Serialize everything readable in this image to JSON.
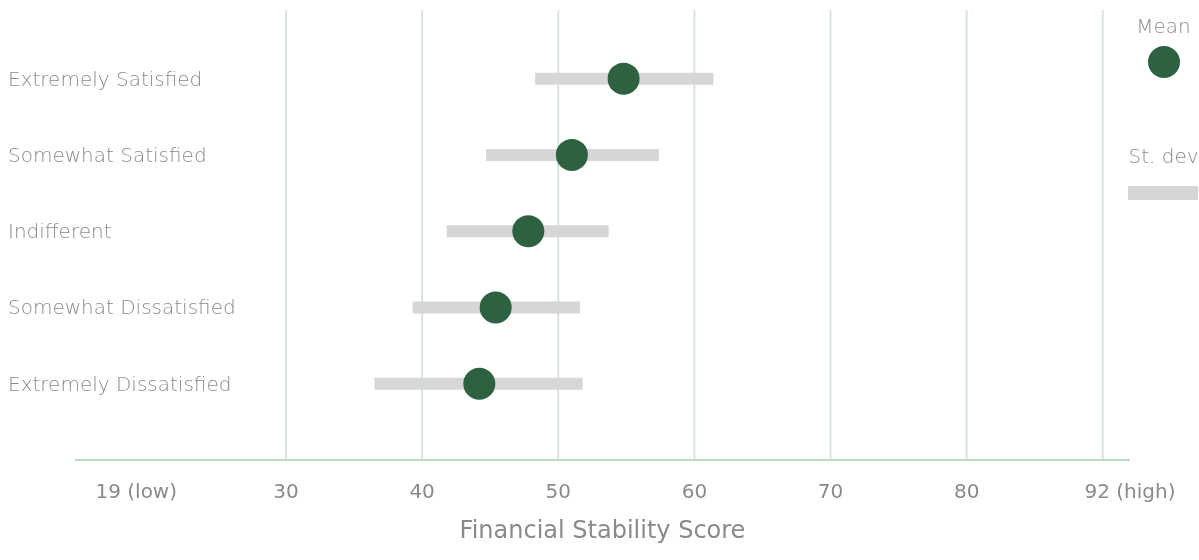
{
  "chart_data": {
    "type": "scatter",
    "orientation": "horizontal",
    "xlabel": "Financial Stability Score",
    "categories": [
      "Extremely Satisfied",
      "Somewhat Satisfied",
      "Indifferent",
      "Somewhat Dissatisfied",
      "Extremely Dissatisfied"
    ],
    "series": [
      {
        "name": "Mean",
        "color": "#2d6140",
        "values": [
          54.8,
          51.0,
          47.8,
          45.4,
          44.2
        ],
        "errors": [
          [
            48.3,
            61.4
          ],
          [
            44.7,
            57.4
          ],
          [
            41.8,
            53.7
          ],
          [
            39.3,
            51.6
          ],
          [
            36.5,
            51.8
          ]
        ]
      }
    ],
    "xlim": [
      14.5,
      92
    ],
    "xticks": [
      {
        "value": 19,
        "label": "19 (low)"
      },
      30,
      40,
      50,
      60,
      70,
      80,
      {
        "value": 90,
        "label": null
      },
      {
        "value": 92,
        "label": "92 (high)"
      }
    ],
    "grid": "x",
    "legend": "right",
    "marker": "circle",
    "annotations": [
      "St. dev"
    ]
  }
}
